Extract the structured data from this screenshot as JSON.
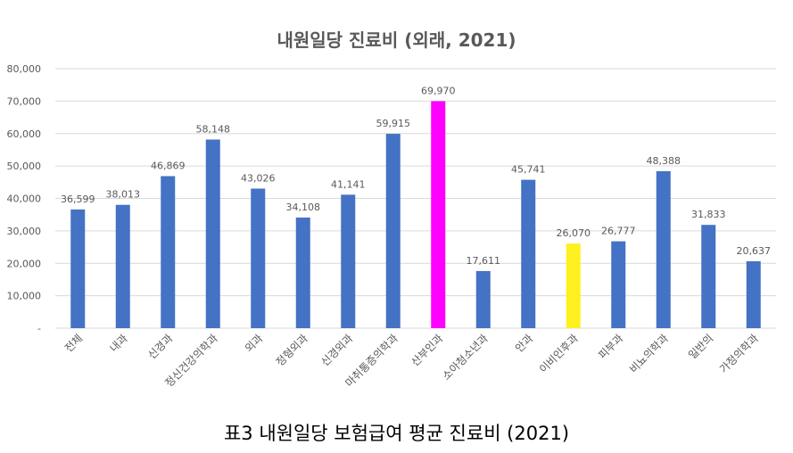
{
  "chart_data": {
    "type": "bar",
    "title": "내원일당 진료비 (외래, 2021)",
    "caption": "표3 내원일당 보험급여 평균 진료비 (2021)",
    "categories": [
      "전체",
      "내과",
      "신경과",
      "정신건강의학과",
      "외과",
      "정형외과",
      "신경외과",
      "마취통증의학과",
      "산부인과",
      "소아청소년과",
      "안과",
      "이비인후과",
      "피부과",
      "비뇨의학과",
      "일반의",
      "가정의학과"
    ],
    "values": [
      36599,
      38013,
      46869,
      58148,
      43026,
      34108,
      41141,
      59915,
      69970,
      17611,
      45741,
      26070,
      26777,
      48388,
      31833,
      20637
    ],
    "value_labels": [
      "36,599",
      "38,013",
      "46,869",
      "58,148",
      "43,026",
      "34,108",
      "41,141",
      "59,915",
      "69,970",
      "17,611",
      "45,741",
      "26,070",
      "26,777",
      "48,388",
      "31,833",
      "20,637"
    ],
    "y_ticks": [
      "-",
      "10,000",
      "20,000",
      "30,000",
      "40,000",
      "50,000",
      "60,000",
      "70,000",
      "80,000"
    ],
    "ylim": [
      0,
      80000
    ],
    "grid": true,
    "colors": {
      "default": "#4472C4",
      "highlight_max": "#FF00FF",
      "highlight_other": "#FFF01F",
      "grid": "#D9D9D9",
      "text": "#595959"
    },
    "highlights": {
      "산부인과": "#FF00FF",
      "이비인후과": "#FFF01F"
    }
  }
}
